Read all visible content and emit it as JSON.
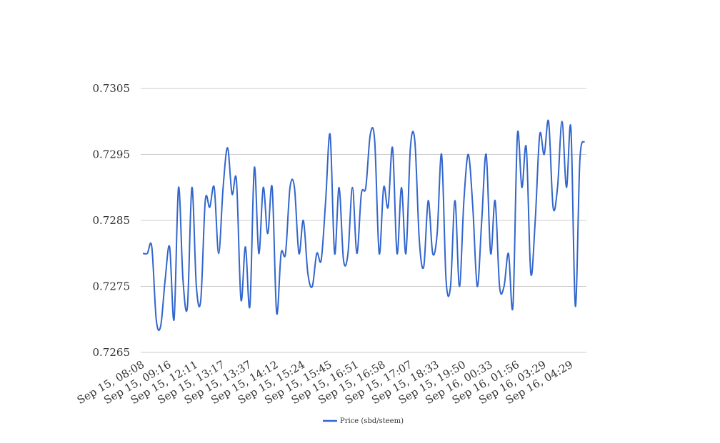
{
  "chart_data": {
    "type": "line",
    "ylim": [
      0.7265,
      0.7305
    ],
    "yticks": [
      "0.7265",
      "0.7275",
      "0.7285",
      "0.7295",
      "0.7305"
    ],
    "yticks_num": [
      0.7265,
      0.7275,
      0.7285,
      0.7295,
      0.7305
    ],
    "xticks": [
      "Sep 15, 08:08",
      "Sep 15, 09:16",
      "Sep 15, 12:11",
      "Sep 15, 13:17",
      "Sep 15, 13:37",
      "Sep 15, 14:12",
      "Sep 15, 15:24",
      "Sep 15, 15:45",
      "Sep 15, 16:51",
      "Sep 15, 16:58",
      "Sep 15, 17:07",
      "Sep 15, 18:33",
      "Sep 15, 19:50",
      "Sep 16, 00:33",
      "Sep 16, 01:56",
      "Sep 16, 03:29",
      "Sep 16, 04:29"
    ],
    "grid": true,
    "legend_position": "bottom",
    "series": [
      {
        "name": "Price (sbd/steem)",
        "color": "#3366cc",
        "values": [
          0.728,
          0.728,
          0.7281,
          0.727,
          0.7269,
          0.7276,
          0.7281,
          0.727,
          0.729,
          0.7276,
          0.7272,
          0.729,
          0.7275,
          0.7273,
          0.7288,
          0.7287,
          0.729,
          0.728,
          0.729,
          0.7296,
          0.7289,
          0.7291,
          0.7273,
          0.7281,
          0.7272,
          0.7293,
          0.728,
          0.729,
          0.7283,
          0.729,
          0.7271,
          0.728,
          0.728,
          0.729,
          0.729,
          0.728,
          0.7285,
          0.7277,
          0.7275,
          0.728,
          0.7279,
          0.7288,
          0.7298,
          0.728,
          0.729,
          0.7279,
          0.728,
          0.729,
          0.728,
          0.7289,
          0.729,
          0.7298,
          0.7297,
          0.728,
          0.729,
          0.7287,
          0.7296,
          0.728,
          0.729,
          0.728,
          0.7296,
          0.7297,
          0.7282,
          0.7278,
          0.7288,
          0.728,
          0.7283,
          0.7295,
          0.7276,
          0.7275,
          0.7288,
          0.7275,
          0.7288,
          0.7295,
          0.7287,
          0.7275,
          0.7285,
          0.7295,
          0.728,
          0.7288,
          0.7275,
          0.7275,
          0.728,
          0.7272,
          0.7298,
          0.729,
          0.7296,
          0.7277,
          0.7285,
          0.7298,
          0.7295,
          0.73,
          0.7287,
          0.729,
          0.73,
          0.729,
          0.7299,
          0.7272,
          0.7294,
          0.7297
        ]
      }
    ]
  }
}
